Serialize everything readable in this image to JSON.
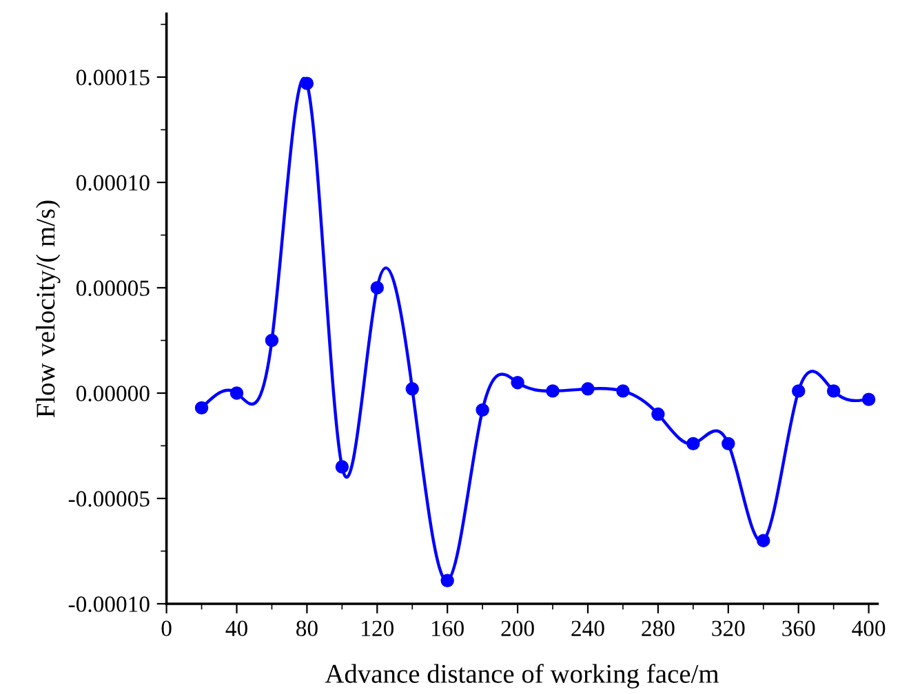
{
  "chart_data": {
    "type": "line",
    "xlabel": "Advance distance of working face/m",
    "ylabel": "Flow velocity/( m/s)",
    "x": [
      20,
      40,
      60,
      80,
      100,
      120,
      140,
      160,
      180,
      200,
      220,
      240,
      260,
      280,
      300,
      320,
      340,
      360,
      380,
      400
    ],
    "series": [
      {
        "color": "#0000ff",
        "values": [
          -7e-06,
          0.0,
          2.5e-05,
          0.000147,
          -3.5e-05,
          5e-05,
          2e-06,
          -8.9e-05,
          -8e-06,
          5e-06,
          1e-06,
          2e-06,
          1e-06,
          -1e-05,
          -2.4e-05,
          -2.4e-05,
          -7e-05,
          1e-06,
          1e-06,
          -3e-06
        ]
      }
    ],
    "marker": "circle",
    "line_style": "solid",
    "xlim": [
      0,
      405
    ],
    "ylim": [
      -0.0001,
      0.00018
    ],
    "xticks": [
      0,
      40,
      80,
      120,
      160,
      200,
      240,
      280,
      320,
      360,
      400
    ],
    "yticks": [
      {
        "value": -0.0001,
        "label": "-0.00010"
      },
      {
        "value": -5e-05,
        "label": "-0.00005"
      },
      {
        "value": 0,
        "label": "0.00000"
      },
      {
        "value": 5e-05,
        "label": "0.00005"
      },
      {
        "value": 0.0001,
        "label": "0.00010"
      },
      {
        "value": 0.00015,
        "label": "0.00015"
      }
    ],
    "grid": false,
    "legend": false
  }
}
